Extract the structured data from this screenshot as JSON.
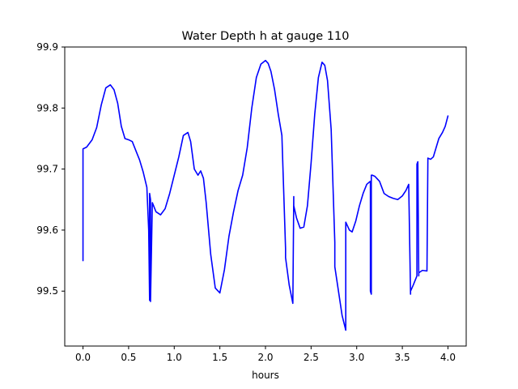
{
  "chart_data": {
    "type": "line",
    "title": "Water Depth h at gauge 110",
    "xlabel": "hours",
    "ylabel": "",
    "xlim": [
      -0.2,
      4.2
    ],
    "ylim": [
      99.41,
      99.9
    ],
    "xticks": [
      0.0,
      0.5,
      1.0,
      1.5,
      2.0,
      2.5,
      3.0,
      3.5,
      4.0
    ],
    "xtick_labels": [
      "0.0",
      "0.5",
      "1.0",
      "1.5",
      "2.0",
      "2.5",
      "3.0",
      "3.5",
      "4.0"
    ],
    "yticks": [
      99.5,
      99.6,
      99.7,
      99.8,
      99.9
    ],
    "ytick_labels": [
      "99.5",
      "99.6",
      "99.7",
      "99.8",
      "99.9"
    ],
    "grid": false,
    "legend": "none",
    "series": [
      {
        "color": "#0000ff",
        "x": [
          0.0,
          0.0,
          0.04,
          0.1,
          0.15,
          0.2,
          0.25,
          0.3,
          0.34,
          0.38,
          0.42,
          0.46,
          0.5,
          0.54,
          0.58,
          0.62,
          0.66,
          0.7,
          0.72,
          0.73,
          0.73,
          0.74,
          0.74,
          0.76,
          0.8,
          0.85,
          0.9,
          0.95,
          1.0,
          1.05,
          1.1,
          1.15,
          1.18,
          1.22,
          1.26,
          1.29,
          1.32,
          1.35,
          1.4,
          1.45,
          1.5,
          1.55,
          1.6,
          1.65,
          1.7,
          1.75,
          1.8,
          1.85,
          1.9,
          1.95,
          2.0,
          2.03,
          2.06,
          2.1,
          2.14,
          2.18,
          2.22,
          2.22,
          2.26,
          2.3,
          2.31,
          2.31,
          2.34,
          2.38,
          2.42,
          2.46,
          2.5,
          2.54,
          2.58,
          2.62,
          2.65,
          2.68,
          2.72,
          2.76,
          2.76,
          2.8,
          2.84,
          2.88,
          2.88,
          2.92,
          2.95,
          2.99,
          3.03,
          3.07,
          3.11,
          3.15,
          3.15,
          3.16,
          3.16,
          3.17,
          3.2,
          3.25,
          3.3,
          3.35,
          3.4,
          3.45,
          3.5,
          3.54,
          3.57,
          3.59,
          3.59,
          3.62,
          3.66,
          3.66,
          3.67,
          3.68,
          3.68,
          3.72,
          3.77,
          3.78,
          3.78,
          3.81,
          3.84,
          3.87,
          3.9,
          3.94,
          3.97,
          4.0
        ],
        "y": [
          99.55,
          99.733,
          99.736,
          99.748,
          99.768,
          99.805,
          99.833,
          99.838,
          99.83,
          99.808,
          99.77,
          99.75,
          99.748,
          99.745,
          99.73,
          99.715,
          99.695,
          99.67,
          99.6,
          99.485,
          99.66,
          99.65,
          99.483,
          99.645,
          99.63,
          99.625,
          99.635,
          99.66,
          99.69,
          99.72,
          99.755,
          99.76,
          99.745,
          99.7,
          99.69,
          99.697,
          99.685,
          99.645,
          99.56,
          99.505,
          99.497,
          99.535,
          99.59,
          99.63,
          99.665,
          99.69,
          99.735,
          99.8,
          99.85,
          99.872,
          99.878,
          99.873,
          99.86,
          99.83,
          99.79,
          99.755,
          99.57,
          99.555,
          99.51,
          99.48,
          99.655,
          99.64,
          99.62,
          99.603,
          99.605,
          99.64,
          99.71,
          99.79,
          99.85,
          99.875,
          99.87,
          99.845,
          99.765,
          99.58,
          99.54,
          99.5,
          99.46,
          99.436,
          99.613,
          99.6,
          99.597,
          99.615,
          99.64,
          99.66,
          99.675,
          99.68,
          99.5,
          99.495,
          99.69,
          99.69,
          99.688,
          99.68,
          99.66,
          99.655,
          99.652,
          99.65,
          99.656,
          99.665,
          99.675,
          99.495,
          99.5,
          99.51,
          99.525,
          99.708,
          99.712,
          99.525,
          99.53,
          99.534,
          99.533,
          99.715,
          99.718,
          99.716,
          99.72,
          99.735,
          99.75,
          99.76,
          99.77,
          99.787
        ]
      }
    ]
  }
}
